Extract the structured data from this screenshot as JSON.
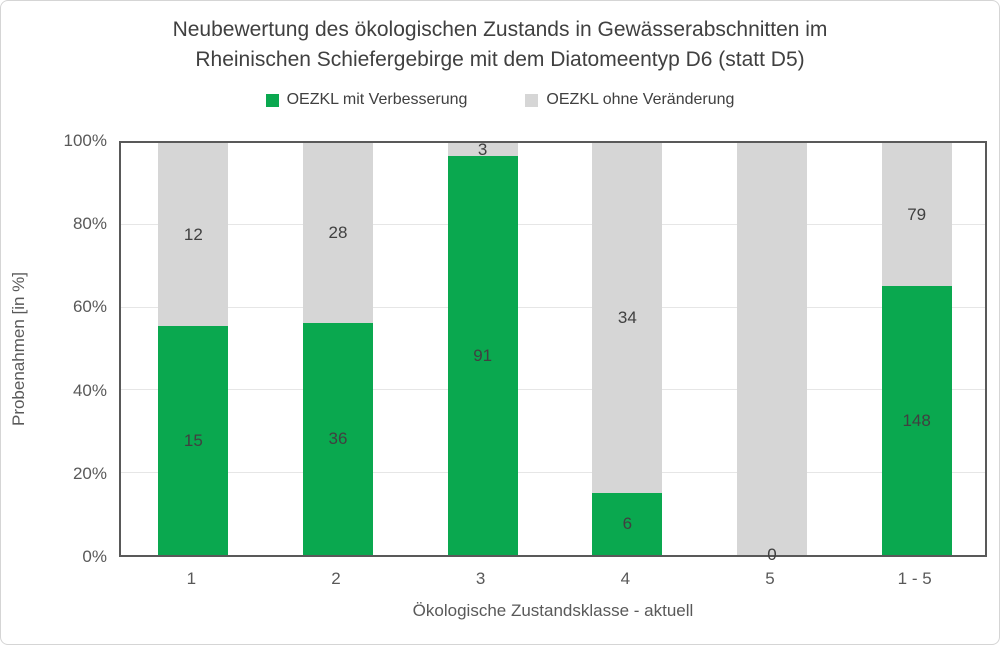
{
  "title": {
    "line1": "Neubewertung des ökologischen Zustands in Gewässerabschnitten im",
    "line2": "Rheinischen Schiefergebirge mit dem Diatomeentyp D6 (statt D5)"
  },
  "legend": {
    "items": [
      {
        "label": "OEZKL mit Verbesserung",
        "color": "#0aa84f"
      },
      {
        "label": "OEZKL ohne Veränderung",
        "color": "#d6d6d6"
      }
    ]
  },
  "y_axis": {
    "title": "Probenahmen [in %]",
    "ticks": [
      "0%",
      "20%",
      "40%",
      "60%",
      "80%",
      "100%"
    ]
  },
  "x_axis": {
    "title": "Ökologische Zustandsklasse - aktuell"
  },
  "chart_data": {
    "type": "bar",
    "subtype": "stacked-100-percent",
    "title": "Neubewertung des ökologischen Zustands in Gewässerabschnitten im Rheinischen Schiefergebirge mit dem Diatomeentyp D6 (statt D5)",
    "xlabel": "Ökologische Zustandsklasse - aktuell",
    "ylabel": "Probenahmen [in %]",
    "ylim": [
      0,
      100
    ],
    "grid": true,
    "legend_position": "top",
    "categories": [
      "1",
      "2",
      "3",
      "4",
      "5",
      "1 - 5"
    ],
    "series": [
      {
        "name": "OEZKL mit Verbesserung",
        "color": "#0aa84f",
        "values": [
          15,
          36,
          91,
          6,
          0,
          148
        ],
        "labels": [
          "15",
          "36",
          "91",
          "6",
          "0",
          "148"
        ]
      },
      {
        "name": "OEZKL ohne Veränderung",
        "color": "#d6d6d6",
        "values": [
          12,
          28,
          3,
          34,
          null,
          79
        ],
        "labels": [
          "12",
          "28",
          "3",
          "34",
          "",
          "79"
        ]
      }
    ],
    "percent_green": [
      55.56,
      56.25,
      96.81,
      15.0,
      0.0,
      65.2
    ]
  },
  "style": {
    "green": "#0aa84f",
    "gray": "#d6d6d6",
    "gridline": "#e6e6e6",
    "plot_border": "#595959",
    "text_dark": "#404040",
    "text_axis": "#595959"
  }
}
